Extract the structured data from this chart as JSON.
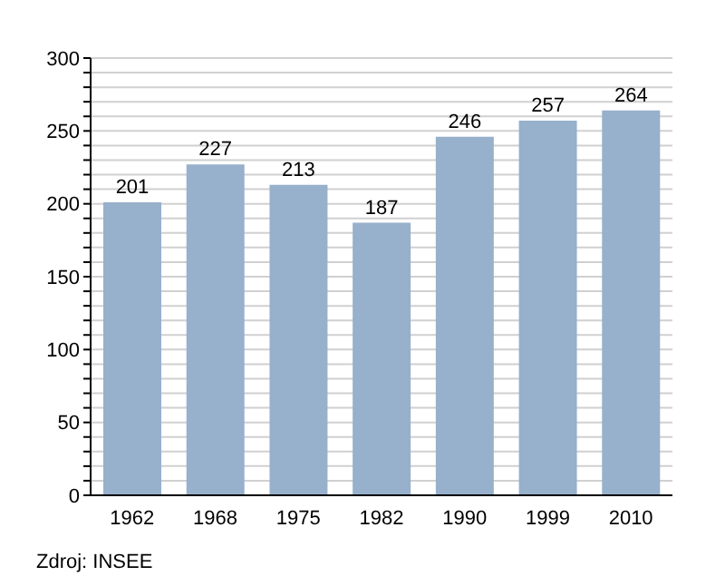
{
  "chart_data": {
    "type": "bar",
    "categories": [
      "1962",
      "1968",
      "1975",
      "1982",
      "1990",
      "1999",
      "2010"
    ],
    "values": [
      201,
      227,
      213,
      187,
      246,
      257,
      264
    ],
    "color": "#97b0cb",
    "data_labels": true,
    "ylim": [
      0,
      300
    ],
    "yticks": [
      0,
      {
        "value": 10,
        "label": null
      },
      {
        "value": 20,
        "label": null
      },
      {
        "value": 30,
        "label": null
      },
      {
        "value": 40,
        "label": null
      },
      50,
      {
        "value": 60,
        "label": null
      },
      {
        "value": 70,
        "label": null
      },
      {
        "value": 80,
        "label": null
      },
      {
        "value": 90,
        "label": null
      },
      100,
      {
        "value": 110,
        "label": null
      },
      {
        "value": 120,
        "label": null
      },
      {
        "value": 130,
        "label": null
      },
      {
        "value": 140,
        "label": null
      },
      150,
      {
        "value": 160,
        "label": null
      },
      {
        "value": 170,
        "label": null
      },
      {
        "value": 180,
        "label": null
      },
      {
        "value": 190,
        "label": null
      },
      200,
      {
        "value": 210,
        "label": null
      },
      {
        "value": 220,
        "label": null
      },
      {
        "value": 230,
        "label": null
      },
      {
        "value": 240,
        "label": null
      },
      250,
      {
        "value": 260,
        "label": null
      },
      {
        "value": 270,
        "label": null
      },
      {
        "value": 280,
        "label": null
      },
      {
        "value": 290,
        "label": null
      },
      300
    ],
    "grid": "y",
    "legend": false,
    "annotations": [
      "Zdroj: INSEE"
    ]
  }
}
